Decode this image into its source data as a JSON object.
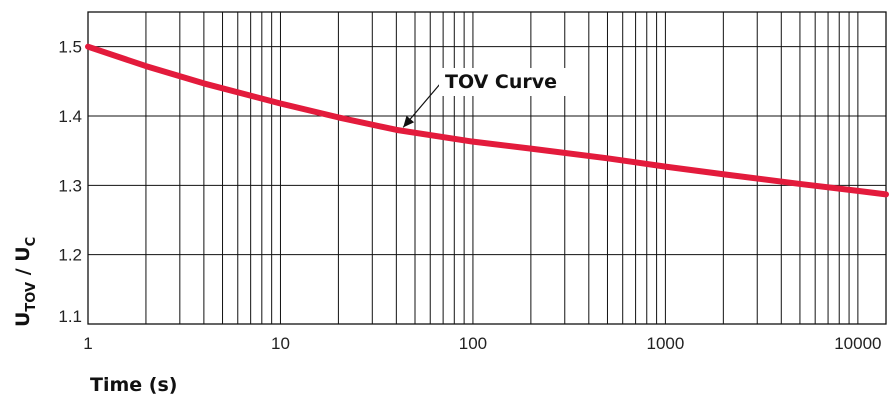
{
  "chart_data": {
    "type": "line",
    "xscale": "log",
    "xlim": [
      1,
      14000
    ],
    "ylim": [
      1.1,
      1.55
    ],
    "grid": true,
    "xlabel": "Time (s)",
    "ylabel_main": "U",
    "ylabel_sub1": "TOV",
    "ylabel_mid": " / U",
    "ylabel_sub2": "C",
    "x_ticks": [
      1,
      10,
      100,
      1000,
      10000
    ],
    "x_tick_labels": [
      "1",
      "10",
      "100",
      "1000",
      "10000"
    ],
    "y_ticks": [
      1.1,
      1.2,
      1.3,
      1.4,
      1.5
    ],
    "y_tick_labels": [
      "1.1",
      "1.2",
      "1.3",
      "1.4",
      "1.5"
    ],
    "series": [
      {
        "color": "#e31b3c",
        "x": [
          1,
          2,
          4,
          10,
          20,
          40,
          100,
          200,
          500,
          1000,
          2000,
          5000,
          10000,
          14000
        ],
        "y": [
          1.5,
          1.472,
          1.447,
          1.418,
          1.398,
          1.38,
          1.363,
          1.353,
          1.339,
          1.327,
          1.316,
          1.302,
          1.292,
          1.287
        ]
      }
    ],
    "annotation": {
      "text": "TOV Curve",
      "x": 45,
      "y": 1.372
    }
  }
}
